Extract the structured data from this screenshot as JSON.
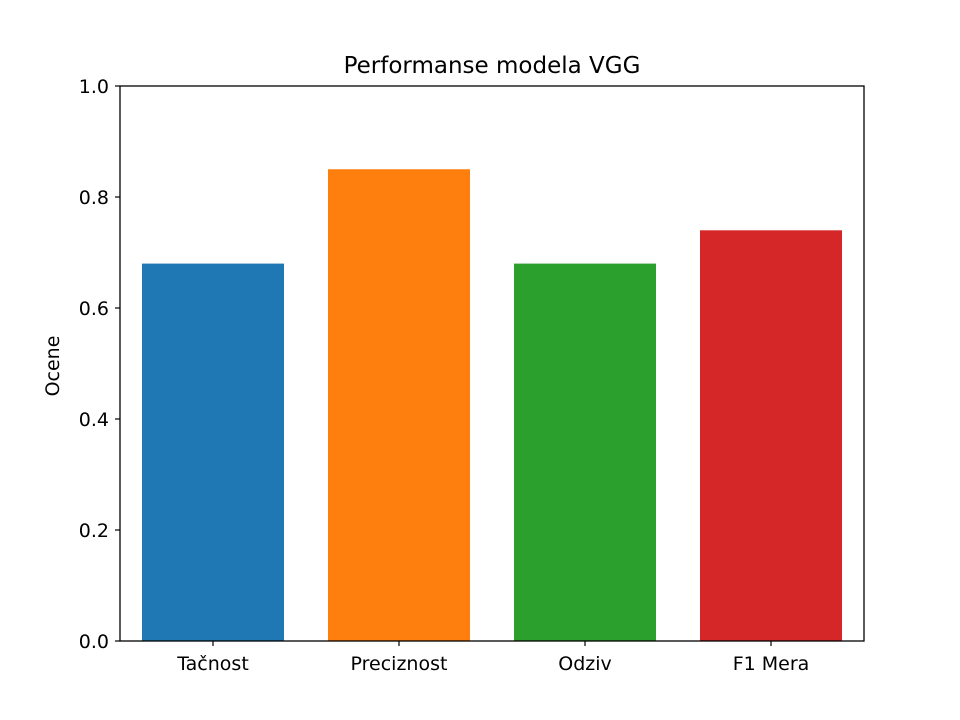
{
  "chart_data": {
    "type": "bar",
    "title": "Performanse modela VGG",
    "xlabel": "",
    "ylabel": "Ocene",
    "categories": [
      "Tačnost",
      "Preciznost",
      "Odziv",
      "F1 Mera"
    ],
    "values": [
      0.68,
      0.85,
      0.68,
      0.74
    ],
    "colors": [
      "#1f77b4",
      "#ff7f0e",
      "#2ca02c",
      "#d62728"
    ],
    "ylim": [
      0,
      1.0
    ],
    "yticks": [
      "0.0",
      "0.2",
      "0.4",
      "0.6",
      "0.8",
      "1.0"
    ],
    "grid": false,
    "legend": "none"
  }
}
